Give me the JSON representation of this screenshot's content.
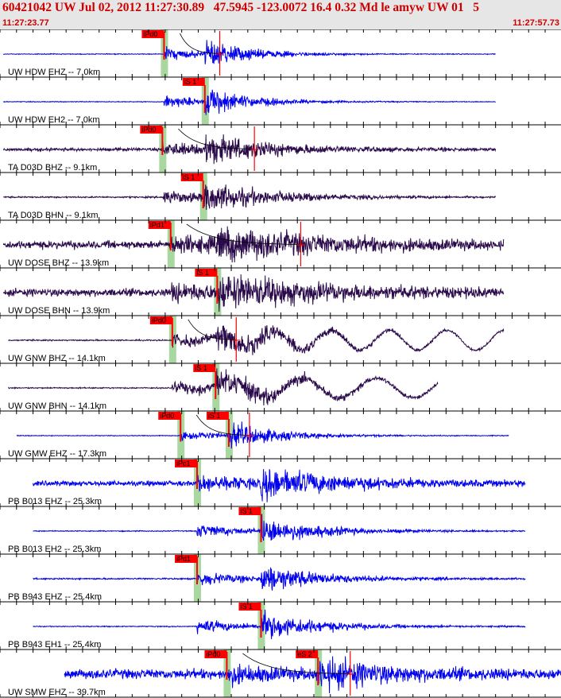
{
  "header": {
    "title": "60421042 UW Jul 02, 2012 11:27:30.89   47.5945 -123.0072 16.4 0.32 Md le amyw UW 01   5",
    "start_time": "11:27:23.77",
    "end_time": "11:27:57.73"
  },
  "colors": {
    "header_bg": "#e6e6e6",
    "header_text": "#cc0000",
    "vertical_trace": "#0000ee",
    "horizontal_trace": "#2a0a4a",
    "pick": "#ff0000",
    "pick_shade": "#a8d8a0"
  },
  "chart_data": {
    "type": "seismogram",
    "x_start": "11:27:23.77",
    "x_end": "11:27:57.73",
    "traces": [
      {
        "label": "UW HDW EHZ -- 7.0km",
        "color": "vertical",
        "start": 0.2,
        "end": 30.0,
        "noise": 0.03,
        "amp": 1.0,
        "decay": 0.45,
        "p": 9.93,
        "s": 12.4,
        "pick": "P",
        "pick_label": "iPd0",
        "coda_mark": 13.3,
        "wave_period": 0
      },
      {
        "label": "UW HDW EH2 -- 7.0km",
        "color": "vertical",
        "start": 0.2,
        "end": 30.0,
        "noise": 0.03,
        "amp": 1.0,
        "decay": 0.45,
        "p": 9.93,
        "s": 12.4,
        "pick": "S",
        "pick_label": "iS 1",
        "coda_mark": null,
        "wave_period": 0
      },
      {
        "label": "TA D03D BHZ -- 9.1km",
        "color": "horizontal",
        "start": 0.2,
        "end": 30.0,
        "noise": 0.12,
        "amp": 1.0,
        "decay": 0.3,
        "p": 9.83,
        "s": 12.3,
        "pick": "P",
        "pick_label": "iPd0",
        "coda_mark": 15.4,
        "wave_period": 0
      },
      {
        "label": "TA D03D BHN -- 9.1km",
        "color": "horizontal",
        "start": 0.2,
        "end": 30.0,
        "noise": 0.06,
        "amp": 1.0,
        "decay": 0.3,
        "p": 9.83,
        "s": 12.3,
        "pick": "S",
        "pick_label": "iS 1",
        "coda_mark": null,
        "wave_period": 0
      },
      {
        "label": "UW DOSE BHZ -- 13.9km",
        "color": "horizontal",
        "start": 0.2,
        "end": 30.5,
        "noise": 0.3,
        "amp": 1.0,
        "decay": 0.18,
        "p": 10.33,
        "s": 13.15,
        "pick": "P",
        "pick_label": "iPd1",
        "coda_mark": 18.2,
        "wave_period": 0
      },
      {
        "label": "UW DOSE BHN -- 13.9km",
        "color": "horizontal",
        "start": 0.2,
        "end": 30.5,
        "noise": 0.3,
        "amp": 1.0,
        "decay": 0.18,
        "p": 10.33,
        "s": 13.15,
        "pick": "S",
        "pick_label": "iS 1",
        "coda_mark": null,
        "wave_period": 0
      },
      {
        "label": "UW GNW BHZ -- 14.1km",
        "color": "horizontal",
        "start": 0.5,
        "end": 30.5,
        "noise": 0.05,
        "amp": 0.9,
        "decay": 0.25,
        "p": 10.43,
        "s": 13.05,
        "pick": "P",
        "pick_label": "iPd0",
        "coda_mark": 14.3,
        "wave_period": 3.5
      },
      {
        "label": "UW GNW BHN -- 14.1km",
        "color": "horizontal",
        "start": 0.5,
        "end": 26.5,
        "noise": 0.05,
        "amp": 0.9,
        "decay": 0.25,
        "p": 10.43,
        "s": 13.05,
        "pick": "S",
        "pick_label": "iS 1",
        "coda_mark": null,
        "wave_period": 4.5
      },
      {
        "label": "UW GMW EHZ -- 17.3km",
        "color": "vertical",
        "start": 1.0,
        "end": 30.8,
        "noise": 0.03,
        "amp": 0.9,
        "decay": 0.4,
        "p": 10.93,
        "s": 13.85,
        "pick": "P+S",
        "pick_label": "iPd0",
        "coda_mark": 15.1,
        "wave_period": 0
      },
      {
        "label": "PB B013 EHZ -- 25.3km",
        "color": "vertical",
        "start": 2.0,
        "end": 31.8,
        "noise": 0.2,
        "amp": 1.0,
        "decay": 0.25,
        "p": 11.93,
        "s": 15.8,
        "pick": "P",
        "pick_label": "iPc1",
        "coda_mark": null,
        "wave_period": 0
      },
      {
        "label": "PB B013 EH2 -- 25.3km",
        "color": "vertical",
        "start": 2.0,
        "end": 31.8,
        "noise": 0.04,
        "amp": 1.0,
        "decay": 0.35,
        "p": 11.93,
        "s": 15.8,
        "pick": "S",
        "pick_label": "iS 1",
        "coda_mark": null,
        "wave_period": 0
      },
      {
        "label": "PB B943 EHZ -- 25.4km",
        "color": "vertical",
        "start": 2.0,
        "end": 31.8,
        "noise": 0.06,
        "amp": 1.0,
        "decay": 0.35,
        "p": 11.93,
        "s": 15.8,
        "pick": "P",
        "pick_label": "iPd1",
        "coda_mark": null,
        "wave_period": 0
      },
      {
        "label": "PB B943 EH1 -- 25.4km",
        "color": "vertical",
        "start": 2.0,
        "end": 31.8,
        "noise": 0.04,
        "amp": 1.0,
        "decay": 0.35,
        "p": 11.93,
        "s": 15.8,
        "pick": "S",
        "pick_label": "iS 1",
        "coda_mark": null,
        "wave_period": 0
      },
      {
        "label": "UW SMW EHZ -- 39.7km",
        "color": "vertical",
        "start": 3.9,
        "end": 34.0,
        "noise": 0.38,
        "amp": 1.0,
        "decay": 0.3,
        "p": 13.73,
        "s": 19.25,
        "pick": "P+S",
        "pick_label": "iPd0",
        "pick_label_2": "eS 2",
        "coda_mark": 21.2,
        "wave_period": 0
      }
    ]
  }
}
